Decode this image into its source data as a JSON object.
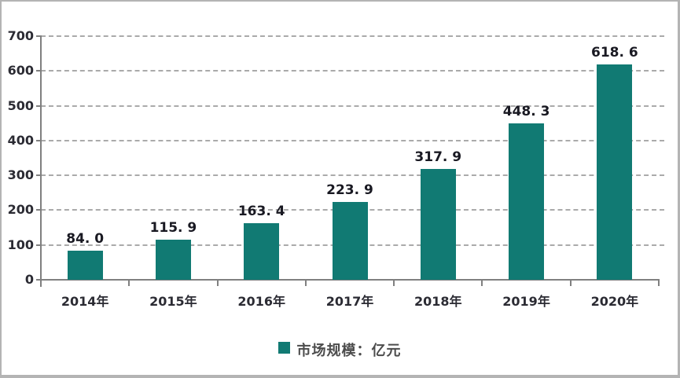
{
  "chart_data": {
    "type": "bar",
    "title": "",
    "xlabel": "",
    "ylabel": "",
    "categories": [
      "2014年",
      "2015年",
      "2016年",
      "2017年",
      "2018年",
      "2019年",
      "2020年"
    ],
    "values": [
      84.0,
      115.9,
      163.4,
      223.9,
      317.9,
      448.3,
      618.6
    ],
    "value_labels": [
      "84. 0",
      "115. 9",
      "163. 4",
      "223. 9",
      "317. 9",
      "448. 3",
      "618. 6"
    ],
    "ylim": [
      0,
      700
    ],
    "yticks": [
      0,
      100,
      200,
      300,
      400,
      500,
      600,
      700
    ],
    "grid": {
      "horizontal": true,
      "style": "dashed",
      "color": "#aaaaaa"
    },
    "legend": {
      "label": "市场规模：亿元",
      "position": "bottom-center"
    },
    "colors": {
      "bar": "#117a73",
      "axis": "#808080",
      "value_label_text": "#191922",
      "tick_label_text": "#2b2b33",
      "legend_text": "#4c4c4c",
      "frame_border": "#b4b4b4"
    }
  }
}
